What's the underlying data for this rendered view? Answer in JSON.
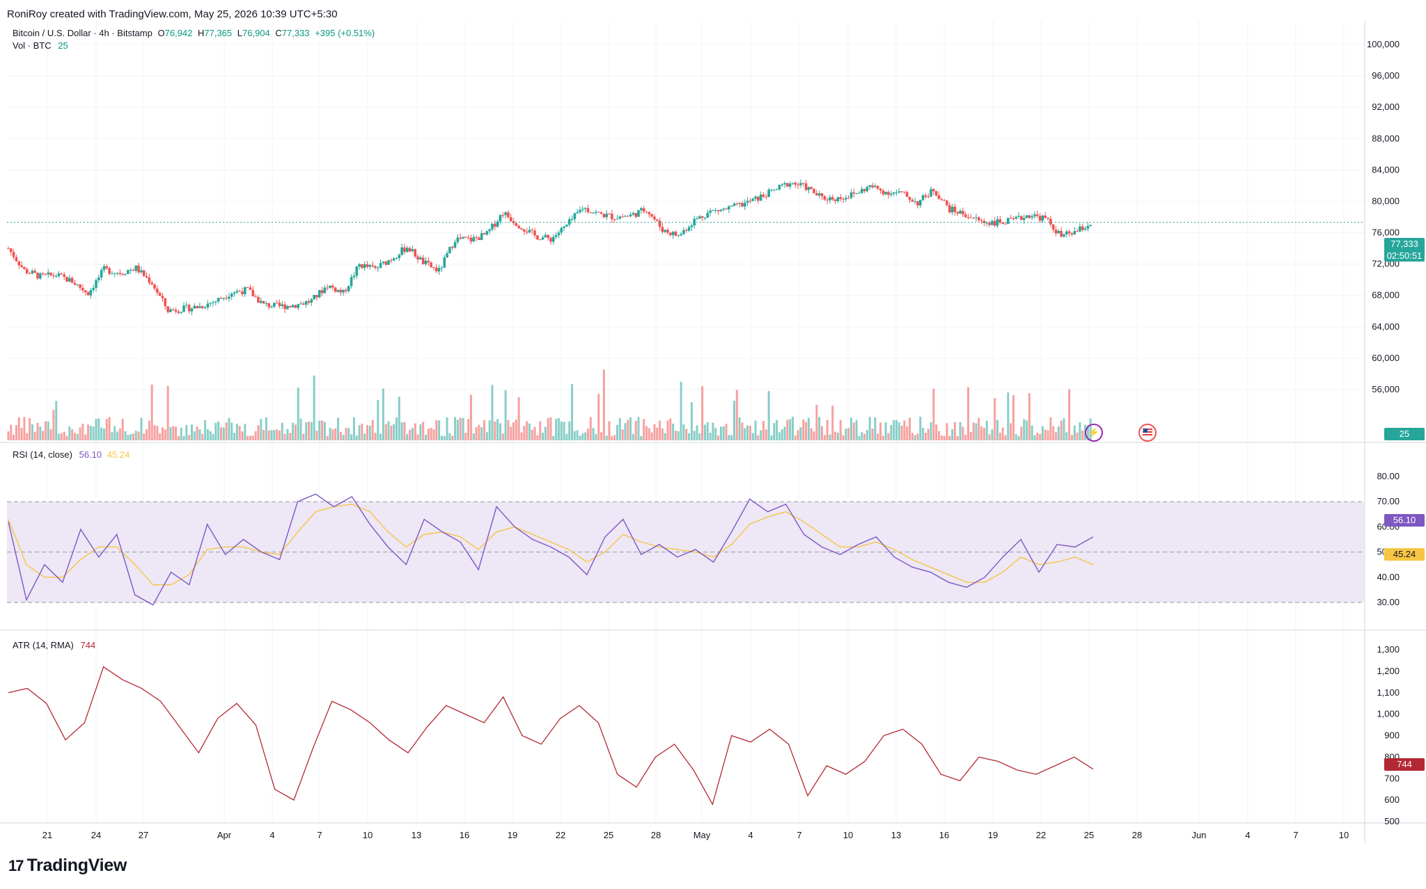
{
  "header": {
    "credit": "RoniRoy created with TradingView.com, May 25, 2026 10:39 UTC+5:30"
  },
  "main_legend": {
    "symbol": "Bitcoin / U.S. Dollar · 4h · Bitstamp",
    "o_label": "O",
    "o": "76,942",
    "h_label": "H",
    "h": "77,365",
    "l_label": "L",
    "l": "76,904",
    "c_label": "C",
    "c": "77,333",
    "change": "+395 (+0.51%)",
    "vol_label": "Vol · BTC",
    "vol": "25"
  },
  "rsi_legend": {
    "label": "RSI (14, close)",
    "value": "56.10",
    "ma": "45.24"
  },
  "atr_legend": {
    "label": "ATR (14, RMA)",
    "value": "744"
  },
  "price_tag": {
    "price": "77,333",
    "countdown": "02:50:51"
  },
  "vol_tag": "25",
  "rsi_tags": {
    "rsi": "56.10",
    "ma": "45.24"
  },
  "atr_tag": "744",
  "price_axis": [
    "100,000",
    "96,000",
    "92,000",
    "88,000",
    "84,000",
    "80,000",
    "76,000",
    "72,000",
    "68,000",
    "64,000",
    "60,000",
    "56,000"
  ],
  "rsi_axis": [
    "80.00",
    "70.00",
    "60.00",
    "50.00",
    "40.00",
    "30.00"
  ],
  "atr_axis": [
    "1,300",
    "1,200",
    "1,100",
    "1,000",
    "900",
    "800",
    "700",
    "600",
    "500"
  ],
  "time_axis": [
    "21",
    "24",
    "27",
    "Apr",
    "4",
    "7",
    "10",
    "13",
    "16",
    "19",
    "22",
    "25",
    "28",
    "May",
    "4",
    "7",
    "10",
    "13",
    "16",
    "19",
    "22",
    "25",
    "28",
    "Jun",
    "4",
    "7",
    "10"
  ],
  "brand": {
    "name": "TradingView",
    "mark": "17"
  },
  "colors": {
    "up": "#26a69a",
    "down": "#ef5350",
    "rsi": "#7e57c2",
    "rsi_ma": "#f7c543",
    "atr": "#b22833",
    "band": "#ede7f6"
  },
  "icons": {
    "events": "lightning-icon",
    "flag": "us-flag-icon"
  },
  "chart_data": [
    {
      "type": "candlestick",
      "title": "Bitcoin / U.S. Dollar · 4h · Bitstamp",
      "ylim": [
        54000,
        102000
      ],
      "close_path": [
        [
          "Mar 18",
          74000
        ],
        [
          "Mar 19",
          71200
        ],
        [
          "Mar 20",
          70400
        ],
        [
          "Mar 21",
          70600
        ],
        [
          "Mar 22",
          69800
        ],
        [
          "Mar 23",
          68300
        ],
        [
          "Mar 24",
          71300
        ],
        [
          "Mar 25",
          70900
        ],
        [
          "Mar 26",
          71500
        ],
        [
          "Mar 27",
          69600
        ],
        [
          "Mar 28",
          66100
        ],
        [
          "Mar 29",
          66300
        ],
        [
          "Mar 30",
          66600
        ],
        [
          "Mar 31",
          67300
        ],
        [
          "Apr 1",
          68400
        ],
        [
          "Apr 2",
          68700
        ],
        [
          "Apr 3",
          66800
        ],
        [
          "Apr 4",
          66600
        ],
        [
          "Apr 5",
          66800
        ],
        [
          "Apr 6",
          67300
        ],
        [
          "Apr 7",
          69300
        ],
        [
          "Apr 8",
          68300
        ],
        [
          "Apr 9",
          71900
        ],
        [
          "Apr 10",
          71400
        ],
        [
          "Apr 11",
          72700
        ],
        [
          "Apr 12",
          74200
        ],
        [
          "Apr 13",
          72200
        ],
        [
          "Apr 14",
          71100
        ],
        [
          "Apr 15",
          75200
        ],
        [
          "Apr 16",
          75100
        ],
        [
          "Apr 17",
          75800
        ],
        [
          "Apr 18",
          78600
        ],
        [
          "Apr 19",
          77000
        ],
        [
          "Apr 20",
          75600
        ],
        [
          "Apr 21",
          75200
        ],
        [
          "Apr 22",
          76900
        ],
        [
          "Apr 23",
          79200
        ],
        [
          "Apr 24",
          78400
        ],
        [
          "Apr 25",
          78000
        ],
        [
          "Apr 26",
          78200
        ],
        [
          "Apr 27",
          79000
        ],
        [
          "Apr 28",
          76400
        ],
        [
          "Apr 29",
          75600
        ],
        [
          "Apr 30",
          77600
        ],
        [
          "May 1",
          78700
        ],
        [
          "May 2",
          79000
        ],
        [
          "May 3",
          79600
        ],
        [
          "May 4",
          80400
        ],
        [
          "May 5",
          81400
        ],
        [
          "May 6",
          82400
        ],
        [
          "May 7",
          81800
        ],
        [
          "May 8",
          80400
        ],
        [
          "May 9",
          80400
        ],
        [
          "May 10",
          80900
        ],
        [
          "May 11",
          81900
        ],
        [
          "May 12",
          81200
        ],
        [
          "May 13",
          81000
        ],
        [
          "May 14",
          79800
        ],
        [
          "May 15",
          81500
        ],
        [
          "May 16",
          79000
        ],
        [
          "May 17",
          78300
        ],
        [
          "May 18",
          77400
        ],
        [
          "May 19",
          77300
        ],
        [
          "May 20",
          77500
        ],
        [
          "May 21",
          78300
        ],
        [
          "May 22",
          77800
        ],
        [
          "May 23",
          75500
        ],
        [
          "May 24",
          76200
        ],
        [
          "May 25",
          77333
        ]
      ],
      "volume_axis_label": "Vol · BTC"
    },
    {
      "type": "line",
      "title": "RSI (14, close)",
      "ylim": [
        25,
        80
      ],
      "bands": [
        30,
        50,
        70
      ],
      "series": [
        {
          "name": "RSI",
          "values": [
            62,
            31,
            45,
            38,
            59,
            48,
            57,
            33,
            29,
            42,
            37,
            61,
            49,
            55,
            50,
            47,
            70,
            73,
            68,
            72,
            61,
            52,
            45,
            63,
            58,
            54,
            43,
            68,
            60,
            55,
            52,
            48,
            41,
            56,
            63,
            49,
            53,
            48,
            51,
            46,
            58,
            71,
            66,
            69,
            57,
            52,
            49,
            53,
            56,
            48,
            44,
            42,
            38,
            36,
            40,
            48,
            55,
            42,
            53,
            52,
            56
          ]
        },
        {
          "name": "MA",
          "values": [
            63,
            45,
            40,
            40,
            47,
            52,
            52,
            45,
            37,
            37,
            41,
            51,
            52,
            52,
            50,
            49,
            58,
            66,
            68,
            69,
            66,
            58,
            52,
            57,
            58,
            56,
            51,
            58,
            60,
            57,
            54,
            51,
            46,
            50,
            57,
            54,
            52,
            51,
            50,
            48,
            53,
            61,
            64,
            66,
            62,
            57,
            52,
            52,
            54,
            51,
            47,
            44,
            41,
            38,
            38,
            42,
            48,
            45,
            46,
            48,
            45
          ]
        }
      ]
    },
    {
      "type": "line",
      "title": "ATR (14, RMA)",
      "ylim": [
        500,
        1300
      ],
      "series": [
        {
          "name": "ATR",
          "values": [
            1100,
            1120,
            1050,
            880,
            960,
            1220,
            1160,
            1120,
            1060,
            940,
            820,
            980,
            1050,
            950,
            650,
            600,
            840,
            1060,
            1020,
            960,
            880,
            820,
            940,
            1040,
            1000,
            960,
            1080,
            900,
            860,
            980,
            1040,
            960,
            720,
            660,
            800,
            860,
            740,
            580,
            900,
            870,
            930,
            860,
            620,
            760,
            720,
            780,
            900,
            930,
            860,
            720,
            690,
            800,
            780,
            740,
            720,
            760,
            800,
            744
          ]
        }
      ]
    }
  ]
}
